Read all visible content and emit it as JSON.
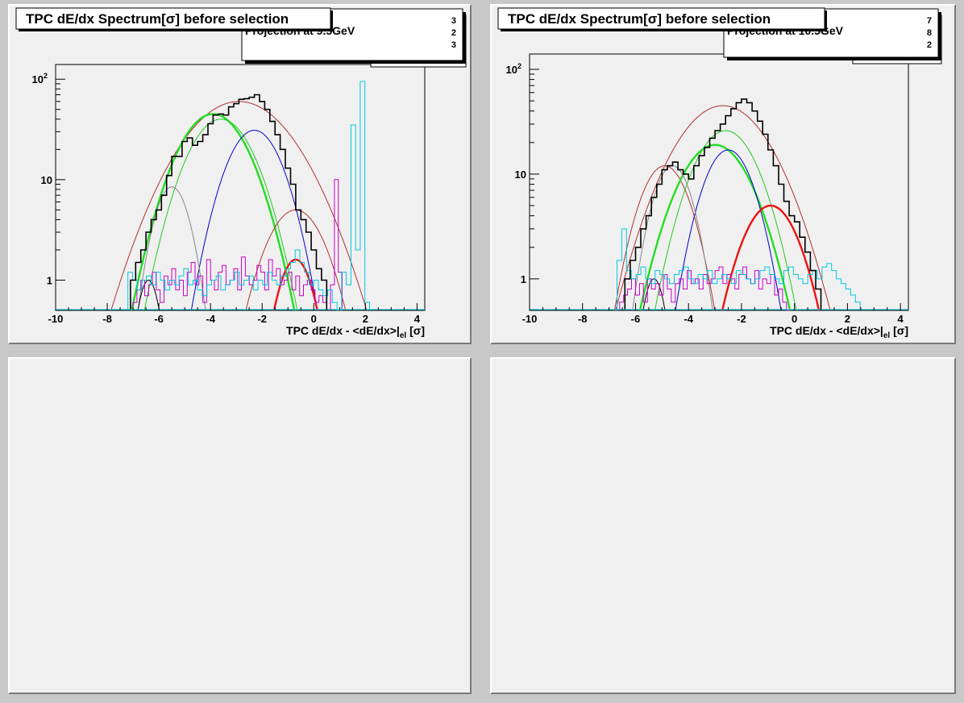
{
  "chart_data": [
    {
      "type": "line",
      "title": "TPC dE/dx Spectrum[σ] before selection",
      "stats_label": "Projection at 9.5GeV",
      "stats_digits": [
        "3",
        "2",
        "3"
      ],
      "xlabel_main": "TPC dE/dx - <dE/dx>|",
      "xlabel_sub": "el",
      "xlabel_tail": " [σ]",
      "xlim": [
        -10,
        4.3
      ],
      "ylim": [
        0.5,
        140
      ],
      "yscale": "log",
      "x_ticks": [
        "-10",
        "-8",
        "-6",
        "-4",
        "-2",
        "0",
        "2",
        "4"
      ],
      "y_ticks": [
        {
          "value": 1,
          "label": "1"
        },
        {
          "value": 10,
          "label": "10"
        },
        {
          "value": 100,
          "label": "10",
          "sup": "2"
        }
      ],
      "histograms": [
        {
          "name": "black",
          "color": "#000000",
          "width": 1.6,
          "x_start": -7.5,
          "bin_width": 0.2,
          "values": [
            0.5,
            0.5,
            1,
            1.5,
            2,
            3,
            4,
            5,
            7,
            11,
            17,
            17,
            24,
            26,
            22,
            24,
            28,
            36,
            44,
            45,
            44,
            53,
            57,
            63,
            64,
            66,
            70,
            60,
            50,
            38,
            28,
            20,
            13,
            9,
            5,
            4,
            3,
            2,
            1.3,
            1,
            0.5
          ]
        }
      ],
      "hist_series": [
        {
          "name": "magenta",
          "color": "#c800c8",
          "x_start": -7.0,
          "bin_width": 0.15,
          "values": [
            0.6,
            0.8,
            1.0,
            0.7,
            0.9,
            1.2,
            0.8,
            0.6,
            1.1,
            0.9,
            1.3,
            0.8,
            1.0,
            0.7,
            1.2,
            1.5,
            0.9,
            1.1,
            0.6,
            1.6,
            1.0,
            0.8,
            1.2,
            1.4,
            0.9,
            1.0,
            1.3,
            0.8,
            1.7,
            1.1,
            0.9,
            1.0,
            1.4,
            1.2,
            0.8,
            1.6,
            1.1,
            1.3,
            0.9,
            1.0,
            1.2,
            0.8,
            1.1,
            0.7,
            0.9,
            1.0,
            0.8,
            0.6,
            0.7,
            0.6,
            0.5,
            0.9,
            10,
            1.2
          ]
        },
        {
          "name": "cyan",
          "color": "#00c8e0",
          "x_start": -7.2,
          "bin_width": 0.18,
          "values": [
            1.2,
            1.0,
            0.8,
            1.0,
            1.1,
            0.9,
            1.2,
            1.0,
            0.8,
            1.0,
            0.9,
            1.1,
            1.3,
            0.9,
            1.0,
            0.8,
            0.7,
            0.9,
            1.0,
            1.1,
            0.8,
            0.9,
            1.0,
            1.2,
            0.9,
            1.0,
            1.1,
            0.8,
            1.0,
            0.9,
            1.2,
            1.0,
            0.9,
            1.1,
            1.3,
            1.5,
            2.0,
            1.5,
            1.2,
            0.9,
            1.0,
            0.8,
            0.7,
            0.8,
            0.6,
            0.5,
            1.2,
            0.9,
            35,
            2.0,
            95,
            0.6
          ]
        }
      ],
      "gaussians": [
        {
          "name": "brown",
          "color": "#b03030",
          "width": 1.0,
          "amp": 60,
          "mean": -2.9,
          "sigma": 1.6
        },
        {
          "name": "green_thick",
          "color": "#22dd22",
          "width": 2.4,
          "amp": 45,
          "mean": -3.9,
          "sigma": 1.05
        },
        {
          "name": "green_thin",
          "color": "#22c822",
          "width": 1.0,
          "amp": 40,
          "mean": -3.6,
          "sigma": 1.0
        },
        {
          "name": "blue",
          "color": "#0000c8",
          "width": 1.0,
          "amp": 31,
          "mean": -2.3,
          "sigma": 0.85
        },
        {
          "name": "grey",
          "color": "#888888",
          "width": 1.0,
          "amp": 8.5,
          "mean": -5.5,
          "sigma": 0.55
        },
        {
          "name": "black_small",
          "color": "#000000",
          "width": 1.0,
          "amp": 1.0,
          "mean": -6.4,
          "sigma": 0.35
        },
        {
          "name": "darkred_thin",
          "color": "#b03030",
          "width": 1.0,
          "amp": 5.0,
          "mean": -0.7,
          "sigma": 0.9
        },
        {
          "name": "red_thick",
          "color": "#ee1111",
          "width": 2.4,
          "amp": 1.6,
          "mean": -0.7,
          "sigma": 0.55
        }
      ]
    },
    {
      "type": "line",
      "title": "TPC dE/dx Spectrum[σ] before selection",
      "stats_label": "Projection at 10.5GeV",
      "stats_digits": [
        "7",
        "8",
        "2"
      ],
      "xlabel_main": "TPC dE/dx - <dE/dx>|",
      "xlabel_sub": "el",
      "xlabel_tail": " [σ]",
      "xlim": [
        -10,
        4.3
      ],
      "ylim": [
        0.5,
        140
      ],
      "yscale": "log",
      "x_ticks": [
        "-10",
        "-8",
        "-6",
        "-4",
        "-2",
        "0",
        "2",
        "4"
      ],
      "y_ticks": [
        {
          "value": 1,
          "label": "1"
        },
        {
          "value": 10,
          "label": "10"
        },
        {
          "value": 100,
          "label": "10",
          "sup": "2"
        }
      ],
      "histograms": [
        {
          "name": "black",
          "color": "#000000",
          "width": 1.6,
          "x_start": -6.6,
          "bin_width": 0.2,
          "values": [
            0.5,
            1,
            1.5,
            2,
            3,
            4,
            6,
            8,
            11,
            12,
            13,
            11,
            10,
            9,
            12,
            15,
            18,
            22,
            26,
            30,
            36,
            42,
            48,
            52,
            48,
            40,
            32,
            24,
            17,
            12,
            8,
            5.5,
            4,
            3.5,
            2.5,
            1.8,
            1.2,
            0.8,
            0.5
          ]
        }
      ],
      "hist_series": [
        {
          "name": "magenta",
          "color": "#c800c8",
          "x_start": -6.6,
          "bin_width": 0.15,
          "values": [
            0.6,
            0.7,
            0.8,
            1.0,
            0.7,
            0.9,
            0.6,
            1.0,
            0.8,
            0.9,
            0.7,
            1.1,
            0.8,
            0.6,
            0.9,
            1.0,
            0.8,
            1.2,
            0.9,
            1.0,
            0.8,
            1.1,
            0.9,
            1.0,
            1.2,
            1.3,
            0.9,
            1.1,
            1.0,
            0.8,
            1.1,
            1.3,
            1.0,
            0.9,
            1.2,
            0.8,
            1.0,
            0.9,
            1.1,
            0.7,
            0.8,
            0.6,
            0.5
          ]
        },
        {
          "name": "cyan",
          "color": "#00c8e0",
          "x_start": -6.7,
          "bin_width": 0.18,
          "values": [
            1.5,
            3.0,
            1.2,
            1.0,
            1.1,
            1.3,
            1.0,
            0.9,
            1.2,
            1.1,
            1.0,
            0.9,
            1.1,
            1.2,
            1.3,
            1.0,
            0.9,
            1.1,
            1.0,
            1.2,
            0.9,
            1.0,
            1.1,
            1.0,
            0.9,
            1.2,
            1.1,
            1.0,
            0.9,
            1.0,
            1.2,
            1.3,
            1.1,
            1.0,
            0.9,
            1.2,
            1.3,
            1.1,
            1.0,
            0.9,
            1.1,
            1.2,
            1.0,
            1.3,
            1.4,
            1.2,
            1.0,
            0.9,
            0.8,
            0.7,
            0.6
          ]
        }
      ],
      "gaussians": [
        {
          "name": "brown",
          "color": "#b03030",
          "width": 1.0,
          "amp": 45,
          "mean": -2.7,
          "sigma": 1.35
        },
        {
          "name": "brown_left",
          "color": "#b03030",
          "width": 1.0,
          "amp": 12,
          "mean": -4.9,
          "sigma": 0.75
        },
        {
          "name": "green_thin",
          "color": "#22c822",
          "width": 1.0,
          "amp": 26,
          "mean": -2.6,
          "sigma": 0.95
        },
        {
          "name": "green_thick",
          "color": "#22dd22",
          "width": 2.4,
          "amp": 19,
          "mean": -3.0,
          "sigma": 1.05
        },
        {
          "name": "blue",
          "color": "#0000c8",
          "width": 1.0,
          "amp": 17,
          "mean": -2.5,
          "sigma": 0.75
        },
        {
          "name": "grey",
          "color": "#888888",
          "width": 1.0,
          "amp": 12,
          "mean": -4.6,
          "sigma": 0.6
        },
        {
          "name": "black_small",
          "color": "#000000",
          "width": 1.0,
          "amp": 1.0,
          "mean": -5.3,
          "sigma": 0.35
        },
        {
          "name": "red_thick",
          "color": "#ee1111",
          "width": 2.4,
          "amp": 5.0,
          "mean": -0.9,
          "sigma": 0.85
        }
      ]
    }
  ]
}
